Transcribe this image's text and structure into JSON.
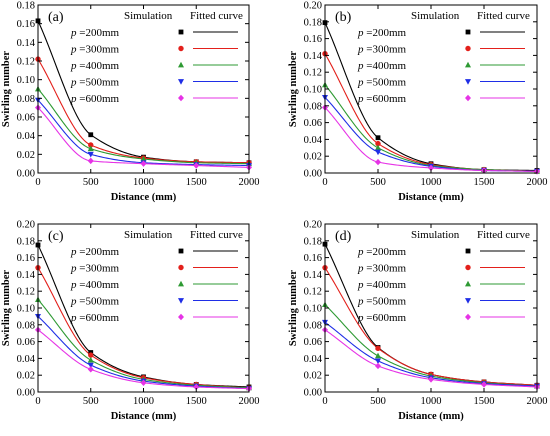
{
  "chart_data": [
    {
      "type": "scatter",
      "panel_label": "(a)",
      "xlabel": "Distance (mm)",
      "ylabel": "Swirling number",
      "xlim": [
        0,
        2000
      ],
      "ylim": [
        0,
        0.18
      ],
      "xticks": [
        "0",
        "500",
        "1000",
        "1500",
        "2000"
      ],
      "yticks": [
        "0.00",
        "0.02",
        "0.04",
        "0.06",
        "0.08",
        "0.10",
        "0.12",
        "0.14",
        "0.16",
        "0.18"
      ],
      "legend": {
        "sim_header": "Simulation",
        "fit_header": "Fitted curve",
        "var_symbol": "p"
      },
      "series": [
        {
          "name": "=200mm",
          "color": "#000000",
          "marker": "square",
          "x": [
            0,
            500,
            1000,
            1500,
            2000
          ],
          "y": [
            0.163,
            0.041,
            0.017,
            0.012,
            0.011
          ]
        },
        {
          "name": "=300mm",
          "color": "#e3201b",
          "marker": "circle",
          "x": [
            0,
            500,
            1000,
            1500,
            2000
          ],
          "y": [
            0.122,
            0.03,
            0.016,
            0.012,
            0.011
          ]
        },
        {
          "name": "=400mm",
          "color": "#2e9a33",
          "marker": "triangle-up",
          "x": [
            0,
            500,
            1000,
            1500,
            2000
          ],
          "y": [
            0.09,
            0.026,
            0.015,
            0.011,
            0.01
          ]
        },
        {
          "name": "=500mm",
          "color": "#1f2ee6",
          "marker": "triangle-down",
          "x": [
            0,
            500,
            1000,
            1500,
            2000
          ],
          "y": [
            0.078,
            0.02,
            0.011,
            0.009,
            0.008
          ]
        },
        {
          "name": "=600mm",
          "color": "#e633e6",
          "marker": "diamond",
          "x": [
            0,
            500,
            1000,
            1500,
            2000
          ],
          "y": [
            0.07,
            0.013,
            0.01,
            0.008,
            0.006
          ]
        }
      ]
    },
    {
      "type": "scatter",
      "panel_label": "(b)",
      "xlabel": "Distance (mm)",
      "ylabel": "Swirling number",
      "xlim": [
        0,
        2000
      ],
      "ylim": [
        0,
        0.2
      ],
      "xticks": [
        "0",
        "500",
        "1000",
        "1500",
        "2000"
      ],
      "yticks": [
        "0.00",
        "0.02",
        "0.04",
        "0.06",
        "0.08",
        "0.10",
        "0.12",
        "0.14",
        "0.16",
        "0.18",
        "0.20"
      ],
      "legend": {
        "sim_header": "Simulation",
        "fit_header": "Fitted curve",
        "var_symbol": "p"
      },
      "series": [
        {
          "name": "=200mm",
          "color": "#000000",
          "marker": "square",
          "x": [
            0,
            500,
            1000,
            1500,
            2000
          ],
          "y": [
            0.179,
            0.042,
            0.011,
            0.004,
            0.003
          ]
        },
        {
          "name": "=300mm",
          "color": "#e3201b",
          "marker": "circle",
          "x": [
            0,
            500,
            1000,
            1500,
            2000
          ],
          "y": [
            0.142,
            0.035,
            0.01,
            0.004,
            0.002
          ]
        },
        {
          "name": "=400mm",
          "color": "#2e9a33",
          "marker": "triangle-up",
          "x": [
            0,
            500,
            1000,
            1500,
            2000
          ],
          "y": [
            0.105,
            0.03,
            0.009,
            0.004,
            0.002
          ]
        },
        {
          "name": "=500mm",
          "color": "#1f2ee6",
          "marker": "triangle-down",
          "x": [
            0,
            500,
            1000,
            1500,
            2000
          ],
          "y": [
            0.09,
            0.025,
            0.008,
            0.003,
            0.002
          ]
        },
        {
          "name": "=600mm",
          "color": "#e633e6",
          "marker": "diamond",
          "x": [
            0,
            500,
            1000,
            1500,
            2000
          ],
          "y": [
            0.078,
            0.013,
            0.006,
            0.003,
            0.002
          ]
        }
      ]
    },
    {
      "type": "scatter",
      "panel_label": "(c)",
      "xlabel": "Distance (mm)",
      "ylabel": "Swirling number",
      "xlim": [
        0,
        2000
      ],
      "ylim": [
        0,
        0.2
      ],
      "xticks": [
        "0",
        "500",
        "1000",
        "1500",
        "2000"
      ],
      "yticks": [
        "0.00",
        "0.02",
        "0.04",
        "0.06",
        "0.08",
        "0.10",
        "0.12",
        "0.14",
        "0.16",
        "0.18",
        "0.20"
      ],
      "legend": {
        "sim_header": "Simulation",
        "fit_header": "Fitted curve",
        "var_symbol": "p"
      },
      "series": [
        {
          "name": "=200mm",
          "color": "#000000",
          "marker": "square",
          "x": [
            0,
            500,
            1000,
            1500,
            2000
          ],
          "y": [
            0.175,
            0.047,
            0.018,
            0.009,
            0.006
          ]
        },
        {
          "name": "=300mm",
          "color": "#e3201b",
          "marker": "circle",
          "x": [
            0,
            500,
            1000,
            1500,
            2000
          ],
          "y": [
            0.148,
            0.044,
            0.017,
            0.009,
            0.005
          ]
        },
        {
          "name": "=400mm",
          "color": "#2e9a33",
          "marker": "triangle-up",
          "x": [
            0,
            500,
            1000,
            1500,
            2000
          ],
          "y": [
            0.11,
            0.038,
            0.015,
            0.008,
            0.005
          ]
        },
        {
          "name": "=500mm",
          "color": "#1f2ee6",
          "marker": "triangle-down",
          "x": [
            0,
            500,
            1000,
            1500,
            2000
          ],
          "y": [
            0.09,
            0.032,
            0.013,
            0.007,
            0.004
          ]
        },
        {
          "name": "=600mm",
          "color": "#e633e6",
          "marker": "diamond",
          "x": [
            0,
            500,
            1000,
            1500,
            2000
          ],
          "y": [
            0.074,
            0.027,
            0.011,
            0.006,
            0.004
          ]
        }
      ]
    },
    {
      "type": "scatter",
      "panel_label": "(d)",
      "xlabel": "Distance (mm)",
      "ylabel": "Swirling number",
      "xlim": [
        0,
        2000
      ],
      "ylim": [
        0,
        0.2
      ],
      "xticks": [
        "0",
        "500",
        "1000",
        "1500",
        "2000"
      ],
      "yticks": [
        "0.00",
        "0.02",
        "0.04",
        "0.06",
        "0.08",
        "0.10",
        "0.12",
        "0.14",
        "0.16",
        "0.18",
        "0.20"
      ],
      "legend": {
        "sim_header": "Simulation",
        "fit_header": "Fitted curve",
        "var_symbol": "p"
      },
      "series": [
        {
          "name": "=200mm",
          "color": "#000000",
          "marker": "square",
          "x": [
            0,
            500,
            1000,
            1500,
            2000
          ],
          "y": [
            0.176,
            0.053,
            0.021,
            0.012,
            0.008
          ]
        },
        {
          "name": "=300mm",
          "color": "#e3201b",
          "marker": "circle",
          "x": [
            0,
            500,
            1000,
            1500,
            2000
          ],
          "y": [
            0.148,
            0.052,
            0.021,
            0.012,
            0.008
          ]
        },
        {
          "name": "=400mm",
          "color": "#2e9a33",
          "marker": "triangle-up",
          "x": [
            0,
            500,
            1000,
            1500,
            2000
          ],
          "y": [
            0.104,
            0.043,
            0.019,
            0.011,
            0.007
          ]
        },
        {
          "name": "=500mm",
          "color": "#1f2ee6",
          "marker": "triangle-down",
          "x": [
            0,
            500,
            1000,
            1500,
            2000
          ],
          "y": [
            0.083,
            0.037,
            0.017,
            0.01,
            0.007
          ]
        },
        {
          "name": "=600mm",
          "color": "#e633e6",
          "marker": "diamond",
          "x": [
            0,
            500,
            1000,
            1500,
            2000
          ],
          "y": [
            0.074,
            0.031,
            0.015,
            0.009,
            0.006
          ]
        }
      ]
    }
  ]
}
